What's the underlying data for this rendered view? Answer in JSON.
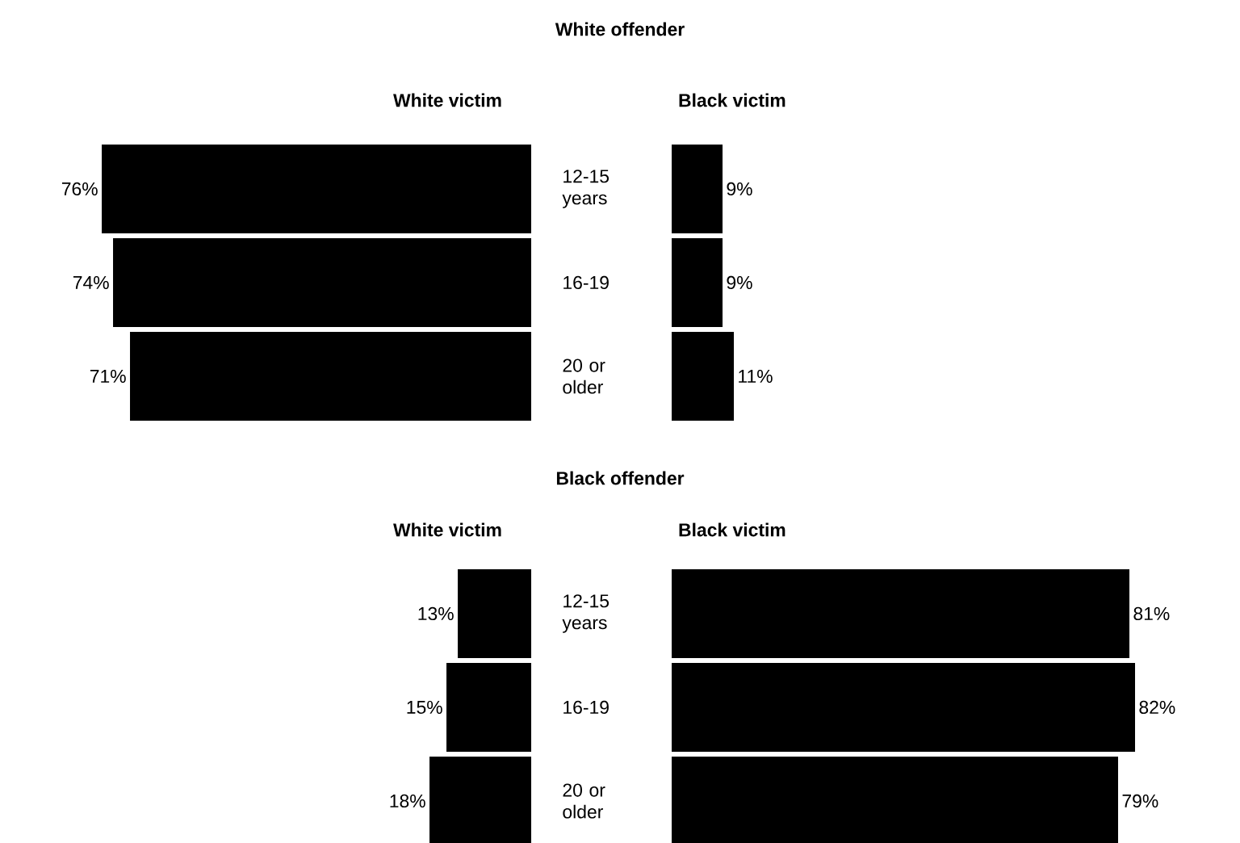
{
  "chart_data": [
    {
      "type": "bar",
      "orientation": "horizontal",
      "title": "White offender",
      "subtitle": "White victim",
      "categories": [
        "12-15 years",
        "16-19",
        "20 or older"
      ],
      "color": "#000000",
      "values": [
        76,
        74,
        71
      ],
      "value_labels": [
        "76%",
        "74%",
        "71%"
      ]
    },
    {
      "type": "bar",
      "orientation": "horizontal",
      "title": "Black victim",
      "categories": [
        null,
        null,
        null
      ],
      "color": "#000000",
      "values": [
        9,
        9,
        11
      ],
      "value_labels": [
        "9%",
        "9%",
        "11%"
      ]
    },
    {
      "type": "bar",
      "orientation": "horizontal",
      "title": "Black offender",
      "subtitle": "White victim",
      "categories": [
        "12-15 years",
        "16-19",
        "20 or older"
      ],
      "color": "#000000",
      "values": [
        13,
        15,
        18
      ],
      "value_labels": [
        "13%",
        "15%",
        "18%"
      ]
    },
    {
      "type": "bar",
      "orientation": "horizontal",
      "title": "Black victim",
      "categories": [
        null,
        null,
        null
      ],
      "color": "#000000",
      "values": [
        81,
        82,
        79
      ],
      "value_labels": [
        "81%",
        "82%",
        "79%"
      ]
    }
  ]
}
